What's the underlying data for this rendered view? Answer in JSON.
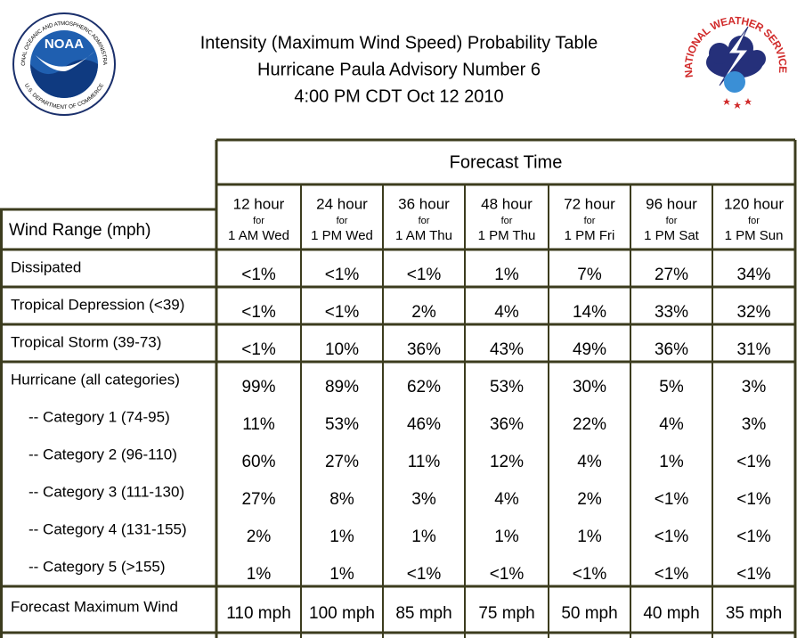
{
  "header": {
    "title_lines": [
      "Intensity (Maximum Wind Speed) Probability Table",
      "Hurricane Paula Advisory Number 6",
      "4:00 PM CDT Oct 12 2010"
    ]
  },
  "logos": {
    "noaa": {
      "text": "NOAA",
      "ring_top": "NATIONAL OCEANIC AND ATMOSPHERIC ADMINISTRATION",
      "ring_bottom": "U.S. DEPARTMENT OF COMMERCE"
    },
    "nws": {
      "ring": "NATIONAL WEATHER SERVICE"
    }
  },
  "table": {
    "forecast_time": "Forecast Time",
    "row_header": "Wind Range (mph)",
    "columns": [
      {
        "hour": "12 hour",
        "for": "for",
        "time": "1 AM Wed"
      },
      {
        "hour": "24 hour",
        "for": "for",
        "time": "1 PM Wed"
      },
      {
        "hour": "36 hour",
        "for": "for",
        "time": "1 AM Thu"
      },
      {
        "hour": "48 hour",
        "for": "for",
        "time": "1 PM Thu"
      },
      {
        "hour": "72 hour",
        "for": "for",
        "time": "1 PM Fri"
      },
      {
        "hour": "96 hour",
        "for": "for",
        "time": "1 PM Sat"
      },
      {
        "hour": "120 hour",
        "for": "for",
        "time": "1 PM Sun"
      }
    ],
    "groups": [
      [
        {
          "label": "Dissipated",
          "values": [
            "<1%",
            "<1%",
            "<1%",
            "1%",
            "7%",
            "27%",
            "34%"
          ]
        }
      ],
      [
        {
          "label": "Tropical Depression (<39)",
          "values": [
            "<1%",
            "<1%",
            "2%",
            "4%",
            "14%",
            "33%",
            "32%"
          ]
        }
      ],
      [
        {
          "label": "Tropical Storm (39-73)",
          "values": [
            "<1%",
            "10%",
            "36%",
            "43%",
            "49%",
            "36%",
            "31%"
          ]
        }
      ],
      [
        {
          "label": "Hurricane (all categories)",
          "values": [
            "99%",
            "89%",
            "62%",
            "53%",
            "30%",
            "5%",
            "3%"
          ]
        },
        {
          "label": "-- Category 1 (74-95)",
          "values": [
            "11%",
            "53%",
            "46%",
            "36%",
            "22%",
            "4%",
            "3%"
          ]
        },
        {
          "label": "-- Category 2 (96-110)",
          "values": [
            "60%",
            "27%",
            "11%",
            "12%",
            "4%",
            "1%",
            "<1%"
          ]
        },
        {
          "label": "-- Category 3 (111-130)",
          "values": [
            "27%",
            "8%",
            "3%",
            "4%",
            "2%",
            "<1%",
            "<1%"
          ]
        },
        {
          "label": "-- Category 4 (131-155)",
          "values": [
            "2%",
            "1%",
            "1%",
            "1%",
            "1%",
            "<1%",
            "<1%"
          ]
        },
        {
          "label": "-- Category 5 (>155)",
          "values": [
            "1%",
            "1%",
            "<1%",
            "<1%",
            "<1%",
            "<1%",
            "<1%"
          ]
        }
      ],
      [
        {
          "label": "Forecast Maximum Wind",
          "values": [
            "110 mph",
            "100 mph",
            "85 mph",
            "75 mph",
            "50 mph",
            "40 mph",
            "35 mph"
          ]
        }
      ]
    ]
  }
}
